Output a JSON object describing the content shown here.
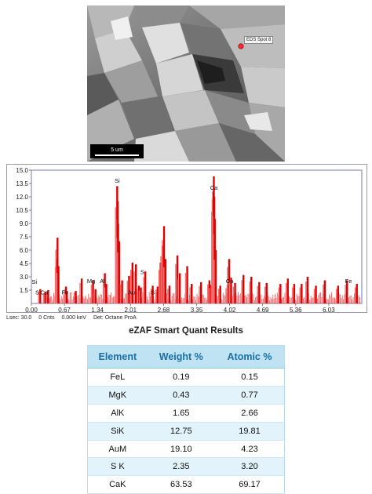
{
  "micrograph": {
    "spot_label": "EDS Spot 8",
    "scale_label": "5 um"
  },
  "status": {
    "lsec": "Lsec: 30.0",
    "cnts": "0 Cnts",
    "kev": "0.000 keV",
    "det": "Det: Octane ProA"
  },
  "chart_data": {
    "type": "bar",
    "title": "",
    "xlabel": "",
    "ylabel": "",
    "xlim": [
      0.0,
      6.7
    ],
    "ylim": [
      0,
      15.0
    ],
    "x_ticks": [
      "0.00",
      "0.67",
      "1.34",
      "2.01",
      "2.68",
      "3.35",
      "4.02",
      "4.69",
      "5.36",
      "6.03"
    ],
    "y_ticks": [
      "1.5",
      "3.0",
      "4.5",
      "6.0",
      "7.5",
      "9.0",
      "10.5",
      "12.0",
      "13.5",
      "15.0"
    ],
    "bar_color": "#e00000",
    "peaks": [
      {
        "x": 0.18,
        "y": 1.6
      },
      {
        "x": 0.28,
        "y": 1.3
      },
      {
        "x": 0.34,
        "y": 1.5
      },
      {
        "x": 0.52,
        "y": 5.0
      },
      {
        "x": 0.53,
        "y": 7.4
      },
      {
        "x": 0.55,
        "y": 4.2
      },
      {
        "x": 0.7,
        "y": 1.9
      },
      {
        "x": 0.72,
        "y": 1.4
      },
      {
        "x": 0.9,
        "y": 1.4
      },
      {
        "x": 1.02,
        "y": 2.8
      },
      {
        "x": 1.25,
        "y": 2.6
      },
      {
        "x": 1.3,
        "y": 1.6
      },
      {
        "x": 1.49,
        "y": 3.4
      },
      {
        "x": 1.52,
        "y": 2.2
      },
      {
        "x": 1.74,
        "y": 13.2
      },
      {
        "x": 1.75,
        "y": 11.5
      },
      {
        "x": 1.76,
        "y": 9.0
      },
      {
        "x": 1.78,
        "y": 7.0
      },
      {
        "x": 1.84,
        "y": 2.6
      },
      {
        "x": 1.98,
        "y": 3.1
      },
      {
        "x": 2.05,
        "y": 4.6
      },
      {
        "x": 2.12,
        "y": 4.4
      },
      {
        "x": 2.18,
        "y": 2.0
      },
      {
        "x": 2.22,
        "y": 1.8
      },
      {
        "x": 2.31,
        "y": 3.6
      },
      {
        "x": 2.46,
        "y": 2.0
      },
      {
        "x": 2.56,
        "y": 1.9
      },
      {
        "x": 2.62,
        "y": 4.6
      },
      {
        "x": 2.66,
        "y": 6.5
      },
      {
        "x": 2.69,
        "y": 8.7
      },
      {
        "x": 2.72,
        "y": 5.0
      },
      {
        "x": 2.8,
        "y": 2.0
      },
      {
        "x": 2.96,
        "y": 5.4
      },
      {
        "x": 3.01,
        "y": 3.4
      },
      {
        "x": 3.16,
        "y": 4.2
      },
      {
        "x": 3.25,
        "y": 2.2
      },
      {
        "x": 3.44,
        "y": 2.4
      },
      {
        "x": 3.61,
        "y": 2.6
      },
      {
        "x": 3.65,
        "y": 2.1
      },
      {
        "x": 3.69,
        "y": 12.6
      },
      {
        "x": 3.7,
        "y": 14.3
      },
      {
        "x": 3.71,
        "y": 12.0
      },
      {
        "x": 3.72,
        "y": 9.5
      },
      {
        "x": 3.74,
        "y": 6.0
      },
      {
        "x": 3.83,
        "y": 2.0
      },
      {
        "x": 3.98,
        "y": 2.1
      },
      {
        "x": 4.01,
        "y": 5.0
      },
      {
        "x": 4.05,
        "y": 2.9
      },
      {
        "x": 4.13,
        "y": 2.3
      },
      {
        "x": 4.3,
        "y": 3.2
      },
      {
        "x": 4.46,
        "y": 3.0
      },
      {
        "x": 4.62,
        "y": 2.4
      },
      {
        "x": 4.77,
        "y": 2.3
      },
      {
        "x": 5.05,
        "y": 2.2
      },
      {
        "x": 5.2,
        "y": 2.8
      },
      {
        "x": 5.33,
        "y": 2.2
      },
      {
        "x": 5.48,
        "y": 2.2
      },
      {
        "x": 5.6,
        "y": 3.0
      },
      {
        "x": 5.77,
        "y": 2.0
      },
      {
        "x": 5.95,
        "y": 2.6
      },
      {
        "x": 6.22,
        "y": 2.0
      },
      {
        "x": 6.4,
        "y": 2.6
      },
      {
        "x": 6.6,
        "y": 2.2
      }
    ],
    "annotations": [
      {
        "text": "Si",
        "x": 1.74,
        "y": 13.6
      },
      {
        "text": "Ca",
        "x": 3.7,
        "y": 12.8
      },
      {
        "text": "Si",
        "x": 0.06,
        "y": 2.2
      },
      {
        "text": "S",
        "x": 0.12,
        "y": 1.0
      },
      {
        "text": "Ca",
        "x": 0.26,
        "y": 1.0
      },
      {
        "text": "Fe",
        "x": 0.68,
        "y": 1.0
      },
      {
        "text": "Mg",
        "x": 1.21,
        "y": 2.3
      },
      {
        "text": "Al",
        "x": 1.44,
        "y": 2.3
      },
      {
        "text": "Au",
        "x": 2.03,
        "y": 1.0
      },
      {
        "text": "S",
        "x": 2.25,
        "y": 3.3
      },
      {
        "text": "S",
        "x": 2.46,
        "y": 1.0
      },
      {
        "text": "Ca",
        "x": 4.02,
        "y": 2.3
      },
      {
        "text": "Fe",
        "x": 6.43,
        "y": 2.3
      }
    ]
  },
  "results": {
    "title": "eZAF Smart Quant Results",
    "headers": [
      "Element",
      "Weight %",
      "Atomic %"
    ],
    "rows": [
      [
        "FeL",
        "0.19",
        "0.15"
      ],
      [
        "MgK",
        "0.43",
        "0.77"
      ],
      [
        "AlK",
        "1.65",
        "2.66"
      ],
      [
        "SiK",
        "12.75",
        "19.81"
      ],
      [
        "AuM",
        "19.10",
        "4.23"
      ],
      [
        "S K",
        "2.35",
        "3.20"
      ],
      [
        "CaK",
        "63.53",
        "69.17"
      ]
    ]
  }
}
